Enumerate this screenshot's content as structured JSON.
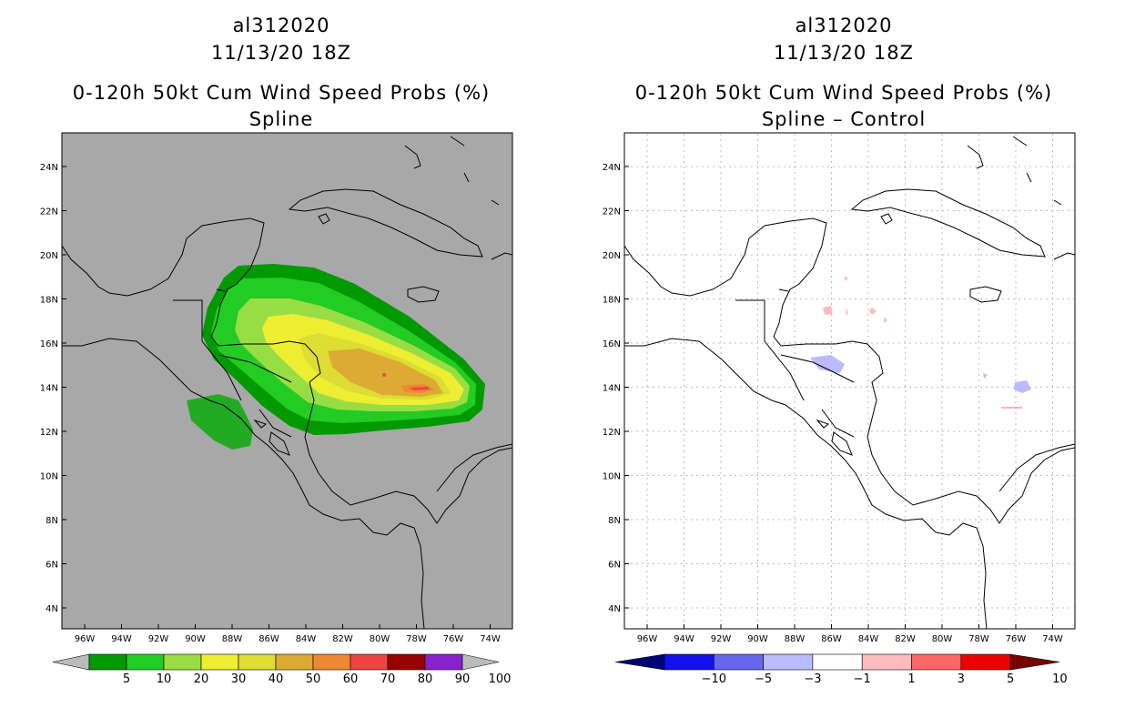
{
  "left": {
    "storm_id": "al312020",
    "date": "11/13/20 18Z",
    "title": "0-120h 50kt Cum Wind Speed Probs (%)",
    "subtitle": "Spline",
    "background_color": "#a8a8a8",
    "colorbar": {
      "colors": [
        "#bbbbbb",
        "#009900",
        "#22cc22",
        "#99dd44",
        "#eeee33",
        "#dddd33",
        "#ddaa33",
        "#ee8833",
        "#ee4444",
        "#990000",
        "#8822cc",
        "#bbbbbb"
      ],
      "labels": [
        "5",
        "10",
        "20",
        "30",
        "40",
        "50",
        "60",
        "70",
        "80",
        "90",
        "100"
      ]
    }
  },
  "right": {
    "storm_id": "al312020",
    "date": "11/13/20 18Z",
    "title": "0-120h 50kt Cum Wind Speed Probs (%)",
    "subtitle": "Spline – Control",
    "background_color": "#ffffff",
    "colorbar": {
      "colors": [
        "#000077",
        "#1111ee",
        "#6666ee",
        "#bbbbff",
        "#ffffff",
        "#ffbbbb",
        "#ff6666",
        "#ee0000",
        "#770000"
      ],
      "labels": [
        "−10",
        "−5",
        "−3",
        "−1",
        "1",
        "3",
        "5",
        "10"
      ]
    }
  },
  "axes": {
    "lon_labels": [
      "96W",
      "94W",
      "92W",
      "90W",
      "88W",
      "86W",
      "84W",
      "82W",
      "80W",
      "78W",
      "76W",
      "74W"
    ],
    "lat_labels": [
      "24N",
      "22N",
      "20N",
      "18N",
      "16N",
      "14N",
      "12N",
      "10N",
      "8N",
      "6N",
      "4N"
    ]
  }
}
